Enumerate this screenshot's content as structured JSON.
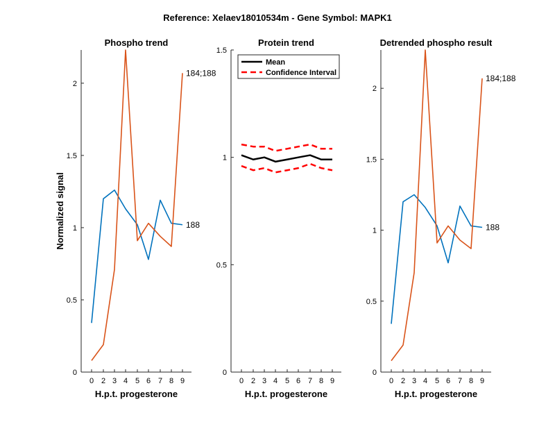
{
  "figure_title": "Reference:  Xelaev18010534m - Gene Symbol:  MAPK1",
  "colors": {
    "blue": "#0072BD",
    "orange": "#D95319",
    "black": "#000000",
    "red": "#FF0000"
  },
  "chart_data": [
    {
      "type": "line",
      "title": "Phospho trend",
      "xlabel": "H.p.t. progesterone",
      "ylabel": "Normalized signal",
      "categories": [
        "0",
        "2",
        "3",
        "4",
        "5",
        "6",
        "7",
        "8",
        "9"
      ],
      "ylim": [
        0,
        2.23
      ],
      "yticks": [
        0,
        0.5,
        1,
        1.5,
        2
      ],
      "ytick_labels": [
        "0",
        "0.5",
        "1",
        "1.5",
        "2"
      ],
      "series": [
        {
          "name": "188",
          "color": "blue",
          "label": "188",
          "values": [
            0.34,
            1.2,
            1.26,
            1.13,
            1.02,
            0.78,
            1.19,
            1.03,
            1.02
          ]
        },
        {
          "name": "184;188",
          "color": "orange",
          "label": "184;188",
          "values": [
            0.08,
            0.19,
            0.71,
            2.23,
            0.91,
            1.03,
            0.94,
            0.87,
            2.07
          ]
        }
      ]
    },
    {
      "type": "line",
      "title": "Protein trend",
      "xlabel": "H.p.t. progesterone",
      "ylabel": "",
      "categories": [
        "0",
        "2",
        "3",
        "4",
        "5",
        "6",
        "7",
        "8",
        "9"
      ],
      "ylim": [
        0,
        1.5
      ],
      "yticks": [
        0,
        0.5,
        1,
        1.5
      ],
      "ytick_labels": [
        "0",
        "0.5",
        "1",
        "1.5"
      ],
      "legend": {
        "position": "top-left",
        "entries": [
          "Mean",
          "Confidence Interval"
        ]
      },
      "series": [
        {
          "name": "Mean",
          "color": "black",
          "dash": false,
          "values": [
            1.01,
            0.99,
            1.0,
            0.98,
            0.99,
            1.0,
            1.01,
            0.99,
            0.99
          ]
        },
        {
          "name": "Confidence Interval",
          "color": "red",
          "dash": true,
          "values": [
            1.06,
            1.05,
            1.05,
            1.03,
            1.04,
            1.05,
            1.06,
            1.04,
            1.04
          ]
        },
        {
          "name": "Confidence Interval (lower)",
          "color": "red",
          "dash": true,
          "values": [
            0.96,
            0.94,
            0.95,
            0.93,
            0.94,
            0.95,
            0.97,
            0.95,
            0.94
          ]
        }
      ]
    },
    {
      "type": "line",
      "title": "Detrended phospho result",
      "xlabel": "H.p.t. progesterone",
      "ylabel": "",
      "categories": [
        "0",
        "2",
        "3",
        "4",
        "5",
        "6",
        "7",
        "8",
        "9"
      ],
      "ylim": [
        0,
        2.27
      ],
      "yticks": [
        0,
        0.5,
        1,
        1.5,
        2
      ],
      "ytick_labels": [
        "0",
        "0.5",
        "1",
        "1.5",
        "2"
      ],
      "series": [
        {
          "name": "188",
          "color": "blue",
          "label": "188",
          "values": [
            0.34,
            1.2,
            1.25,
            1.16,
            1.03,
            0.77,
            1.17,
            1.03,
            1.02
          ]
        },
        {
          "name": "184;188",
          "color": "orange",
          "label": "184;188",
          "values": [
            0.08,
            0.19,
            0.7,
            2.27,
            0.91,
            1.03,
            0.93,
            0.87,
            2.07
          ]
        }
      ]
    }
  ]
}
